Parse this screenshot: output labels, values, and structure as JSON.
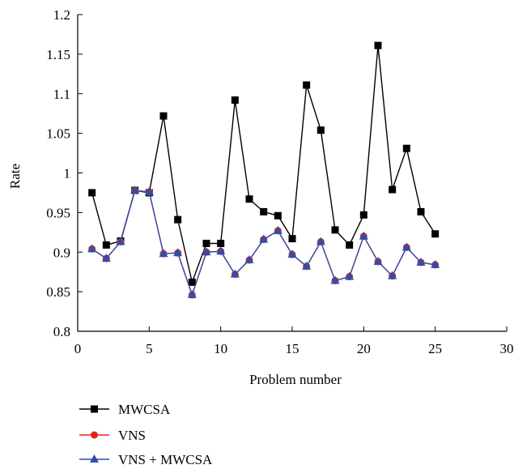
{
  "chart_data": {
    "type": "line",
    "title": "",
    "xlabel": "Problem number",
    "ylabel": "Rate",
    "xlim": [
      0,
      30
    ],
    "ylim": [
      0.8,
      1.2
    ],
    "x_ticks": [
      "0",
      "5",
      "10",
      "15",
      "20",
      "25",
      "30"
    ],
    "y_ticks": [
      "0.8",
      "0.85",
      "0.9",
      "0.95",
      "1",
      "1.05",
      "1.1",
      "1.15",
      "1.2"
    ],
    "grid": false,
    "legend_position": "bottom-left",
    "x": [
      1,
      2,
      3,
      4,
      5,
      6,
      7,
      8,
      9,
      10,
      11,
      12,
      13,
      14,
      15,
      16,
      17,
      18,
      19,
      20,
      21,
      22,
      23,
      24,
      25
    ],
    "series": [
      {
        "name": "MWCSA",
        "color": "#000000",
        "marker": "square",
        "values": [
          0.975,
          0.909,
          0.914,
          0.978,
          0.975,
          1.072,
          0.941,
          0.862,
          0.911,
          0.911,
          1.092,
          0.967,
          0.951,
          0.946,
          0.917,
          1.111,
          1.054,
          0.928,
          0.909,
          0.947,
          1.161,
          0.979,
          1.031,
          0.951,
          0.923
        ]
      },
      {
        "name": "VNS",
        "color": "#e8231f",
        "marker": "circle",
        "values": [
          0.904,
          0.892,
          0.913,
          0.978,
          0.976,
          0.898,
          0.899,
          0.846,
          0.9,
          0.901,
          0.872,
          0.89,
          0.916,
          0.927,
          0.897,
          0.882,
          0.913,
          0.864,
          0.869,
          0.92,
          0.888,
          0.87,
          0.906,
          0.887,
          0.884
        ]
      },
      {
        "name": "VNS + MWCSA",
        "color": "#2f4fa8",
        "marker": "triangle",
        "values": [
          0.904,
          0.892,
          0.913,
          0.978,
          0.976,
          0.898,
          0.899,
          0.846,
          0.9,
          0.901,
          0.872,
          0.89,
          0.916,
          0.927,
          0.897,
          0.882,
          0.913,
          0.864,
          0.869,
          0.92,
          0.888,
          0.87,
          0.906,
          0.887,
          0.884
        ]
      }
    ]
  }
}
